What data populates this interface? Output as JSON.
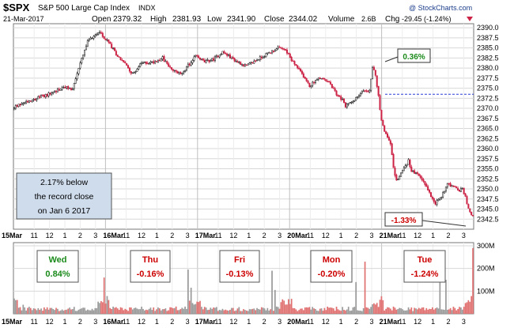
{
  "header": {
    "symbol": "$SPX",
    "name": "S&P 500 Large Cap Index",
    "exchange": "INDX",
    "watermark": "@ StockCharts.com",
    "date": "21-Mar-2017",
    "open_label": "Open",
    "open": "2379.32",
    "high_label": "High",
    "high": "2381.93",
    "low_label": "Low",
    "low": "2341.90",
    "close_label": "Close",
    "close": "2344.02",
    "volume_label": "Volume",
    "volume": "2.6B",
    "chg_label": "Chg",
    "chg": "-29.45 (-1.24%)"
  },
  "colors": {
    "up": "#1a1a1a",
    "down": "#cc2244",
    "vol_up": "#9a9a9a",
    "vol_down": "#e07070",
    "grid": "#d8d8d8",
    "ref_line": "#2b3fd6",
    "green_label": "#1a8a1a",
    "red_label": "#cc0000",
    "note_bg": "#cfdcec"
  },
  "chart_data": {
    "type": "candlestick",
    "days": [
      "15Mar",
      "16Mar",
      "17Mar",
      "20Mar",
      "21Mar"
    ],
    "day_labels": [
      "15Mar",
      "16Mar",
      "17Mar",
      "20Mar",
      "21Mar"
    ],
    "hour_labels": [
      "11",
      "12",
      "1",
      "2",
      "3"
    ],
    "ylim": [
      2340,
      2391
    ],
    "yticks": [
      "2390.0",
      "2387.5",
      "2385.0",
      "2382.5",
      "2380.0",
      "2377.5",
      "2375.0",
      "2372.5",
      "2370.0",
      "2367.5",
      "2365.0",
      "2362.5",
      "2360.0",
      "2357.5",
      "2355.0",
      "2352.5",
      "2350.0",
      "2347.5",
      "2345.0",
      "2342.5"
    ],
    "reference_close": 2373.5,
    "price_path": [
      [
        0,
        2370.0
      ],
      [
        8,
        2371.6
      ],
      [
        16,
        2372.5
      ],
      [
        24,
        2373.5
      ],
      [
        34,
        2375.2
      ],
      [
        40,
        2374.8
      ],
      [
        44,
        2380.0
      ],
      [
        50,
        2386.5
      ],
      [
        54,
        2388.0
      ],
      [
        58,
        2389.2
      ],
      [
        60,
        2387.8
      ],
      [
        64,
        2386.3
      ],
      [
        70,
        2383.0
      ],
      [
        74,
        2381.5
      ],
      [
        80,
        2378.5
      ],
      [
        86,
        2381.2
      ],
      [
        94,
        2381.5
      ],
      [
        100,
        2382.5
      ],
      [
        106,
        2379.5
      ],
      [
        112,
        2378.5
      ],
      [
        118,
        2381.0
      ],
      [
        122,
        2383.0
      ],
      [
        128,
        2381.5
      ],
      [
        134,
        2382.2
      ],
      [
        140,
        2384.0
      ],
      [
        146,
        2382.5
      ],
      [
        150,
        2381.5
      ],
      [
        156,
        2380.5
      ],
      [
        164,
        2382.3
      ],
      [
        172,
        2384.0
      ],
      [
        178,
        2385.0
      ],
      [
        182,
        2384.5
      ],
      [
        186,
        2382.0
      ],
      [
        190,
        2380.0
      ],
      [
        194,
        2378.0
      ],
      [
        198,
        2375.5
      ],
      [
        202,
        2377.0
      ],
      [
        206,
        2377.5
      ],
      [
        212,
        2376.0
      ],
      [
        216,
        2373.5
      ],
      [
        220,
        2372.0
      ],
      [
        222,
        2370.5
      ],
      [
        226,
        2371.8
      ],
      [
        230,
        2372.8
      ],
      [
        234,
        2374.5
      ],
      [
        238,
        2374.3
      ],
      [
        240,
        2380.3
      ],
      [
        242,
        2378.5
      ],
      [
        244,
        2373.0
      ],
      [
        246,
        2367.0
      ],
      [
        248,
        2364.5
      ],
      [
        252,
        2361.5
      ],
      [
        254,
        2355.0
      ],
      [
        256,
        2352.0
      ],
      [
        260,
        2354.5
      ],
      [
        264,
        2357.0
      ],
      [
        266,
        2354.5
      ],
      [
        270,
        2353.5
      ],
      [
        274,
        2352.0
      ],
      [
        278,
        2349.0
      ],
      [
        282,
        2346.5
      ],
      [
        286,
        2348.0
      ],
      [
        290,
        2351.5
      ],
      [
        294,
        2350.5
      ],
      [
        298,
        2349.5
      ],
      [
        300,
        2350.0
      ],
      [
        302,
        2348.0
      ],
      [
        304,
        2345.0
      ],
      [
        306,
        2343.5
      ]
    ],
    "volume_axis": [
      "300M",
      "200M",
      "100M"
    ],
    "volume_max": 300,
    "volume_spikes": [
      {
        "bar": 6,
        "value": 40
      },
      {
        "bar": 60,
        "value": 160
      },
      {
        "bar": 61,
        "value": 45
      },
      {
        "bar": 116,
        "value": 195
      },
      {
        "bar": 118,
        "value": 115
      },
      {
        "bar": 172,
        "value": 190
      },
      {
        "bar": 174,
        "value": 105
      },
      {
        "bar": 228,
        "value": 140
      },
      {
        "bar": 234,
        "value": 230
      },
      {
        "bar": 284,
        "value": 175
      },
      {
        "bar": 288,
        "value": 150
      },
      {
        "bar": 306,
        "value": 290
      }
    ],
    "annotations": {
      "pct_up": "0.36%",
      "pct_down": "-1.33%",
      "note_line1": "2.17% below",
      "note_line2": "the record close",
      "note_line3": "on Jan 6 2017"
    },
    "day_changes": [
      {
        "day": "Wed",
        "change": "0.84%",
        "direction": "up"
      },
      {
        "day": "Thu",
        "change": "-0.16%",
        "direction": "down"
      },
      {
        "day": "Fri",
        "change": "-0.13%",
        "direction": "down"
      },
      {
        "day": "Mon",
        "change": "-0.20%",
        "direction": "down"
      },
      {
        "day": "Tue",
        "change": "-1.24%",
        "direction": "down"
      }
    ]
  }
}
